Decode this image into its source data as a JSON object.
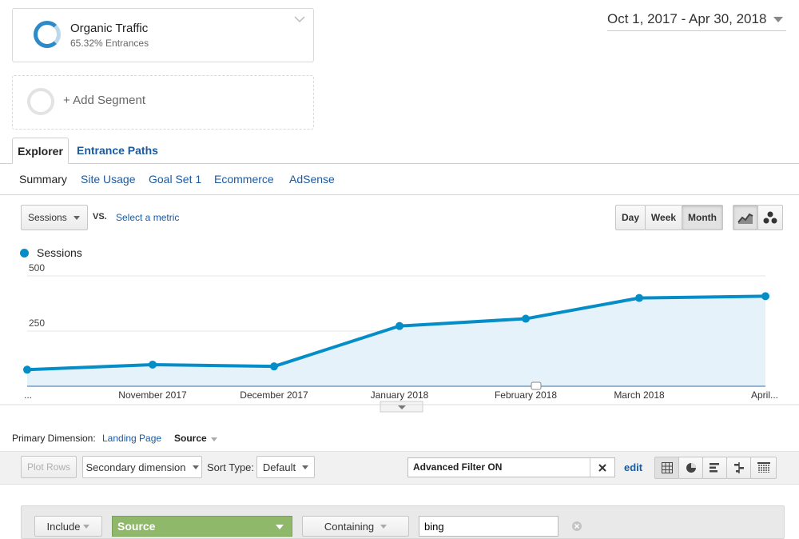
{
  "segments": {
    "primary": {
      "title": "Organic Traffic",
      "subtitle": "65.32% Entrances"
    },
    "add_label": "+ Add Segment"
  },
  "date_range": "Oct 1, 2017 - Apr 30, 2018",
  "tabs": [
    {
      "label": "Explorer",
      "active": true
    },
    {
      "label": "Entrance Paths",
      "active": false
    }
  ],
  "subnav": [
    "Summary",
    "Site Usage",
    "Goal Set 1",
    "Ecommerce",
    "AdSense"
  ],
  "metric_controls": {
    "metric": "Sessions",
    "vs": "VS.",
    "select_metric": "Select a metric",
    "granularity": [
      "Day",
      "Week",
      "Month"
    ],
    "granularity_selected": "Month"
  },
  "chart_data": {
    "type": "area",
    "series": [
      {
        "name": "Sessions",
        "values": [
          75,
          98,
          90,
          273,
          306,
          400,
          408
        ]
      }
    ],
    "categories": [
      "...",
      "November 2017",
      "December 2017",
      "January 2018",
      "February 2018",
      "March 2018",
      "April..."
    ],
    "y_ticks": [
      "500",
      "250"
    ],
    "ylim": [
      0,
      500
    ],
    "grid": true,
    "legend": "top-left",
    "color": "#058dc7"
  },
  "dimension_bar": {
    "label": "Primary Dimension:",
    "landing_page": "Landing Page",
    "source": "Source"
  },
  "toolbar": {
    "plot_rows": "Plot Rows",
    "secondary_dimension": "Secondary dimension",
    "sort_type_label": "Sort Type:",
    "sort_type_value": "Default",
    "filter_text": "Advanced Filter ON",
    "edit": "edit"
  },
  "filter_row": {
    "include": "Include",
    "dimension": "Source",
    "match": "Containing",
    "value": "bing"
  },
  "colors": {
    "accent": "#058dc7",
    "link": "#1a5aa0",
    "filter_green": "#8fb86a"
  }
}
